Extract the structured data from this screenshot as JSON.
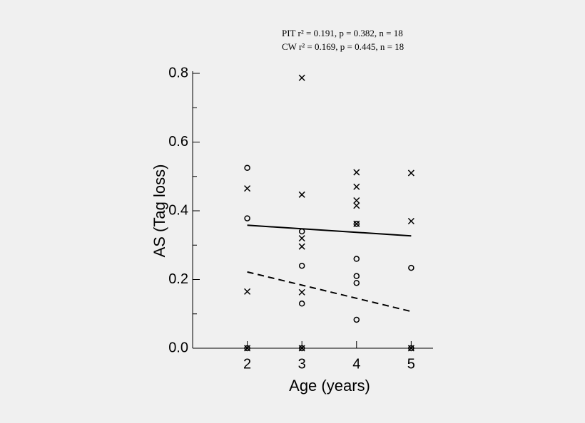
{
  "chart_data": {
    "type": "scatter",
    "annotations": [
      "PIT r² = 0.191, p = 0.382, n = 18",
      "CW r² = 0.169, p = 0.445, n = 18"
    ],
    "xlabel": "Age (years)",
    "ylabel": "AS (Tag loss)",
    "xlim": [
      1,
      5.4
    ],
    "xticks": [
      2,
      3,
      4,
      5
    ],
    "ylim": [
      0,
      0.8
    ],
    "yticks": [
      {
        "value": 0,
        "label": "0.0"
      },
      {
        "value": 0.2,
        "label": "0.2"
      },
      {
        "value": 0.4,
        "label": "0.4"
      },
      {
        "value": 0.6,
        "label": "0.6"
      },
      {
        "value": 0.8,
        "label": "0.8"
      }
    ],
    "minor_yticks": [
      0.1,
      0.3,
      0.5,
      0.7
    ],
    "series": [
      {
        "marker": "x",
        "color": "#000000",
        "x": [
          2,
          2,
          2,
          3,
          3,
          3,
          3,
          3,
          3,
          4,
          4,
          4,
          4,
          4,
          5,
          5,
          5
        ],
        "values": [
          0.465,
          0.165,
          0,
          0.787,
          0.447,
          0.32,
          0.296,
          0.163,
          0,
          0.512,
          0.47,
          0.43,
          0.415,
          0.362,
          0.51,
          0.37,
          0
        ]
      },
      {
        "marker": "o",
        "color": "#000000",
        "x": [
          2,
          2,
          2,
          3,
          3,
          3,
          3,
          4,
          4,
          4,
          4,
          4,
          5,
          5
        ],
        "values": [
          0.525,
          0.378,
          0,
          0.34,
          0.24,
          0.13,
          0,
          0.362,
          0.26,
          0.21,
          0.19,
          0.083,
          0.234,
          0
        ]
      }
    ],
    "fits": [
      {
        "dashed": false,
        "color": "#000000",
        "x": [
          2,
          5
        ],
        "values": [
          0.358,
          0.327
        ]
      },
      {
        "dashed": true,
        "color": "#000000",
        "x": [
          2,
          5
        ],
        "values": [
          0.222,
          0.107
        ]
      }
    ]
  }
}
